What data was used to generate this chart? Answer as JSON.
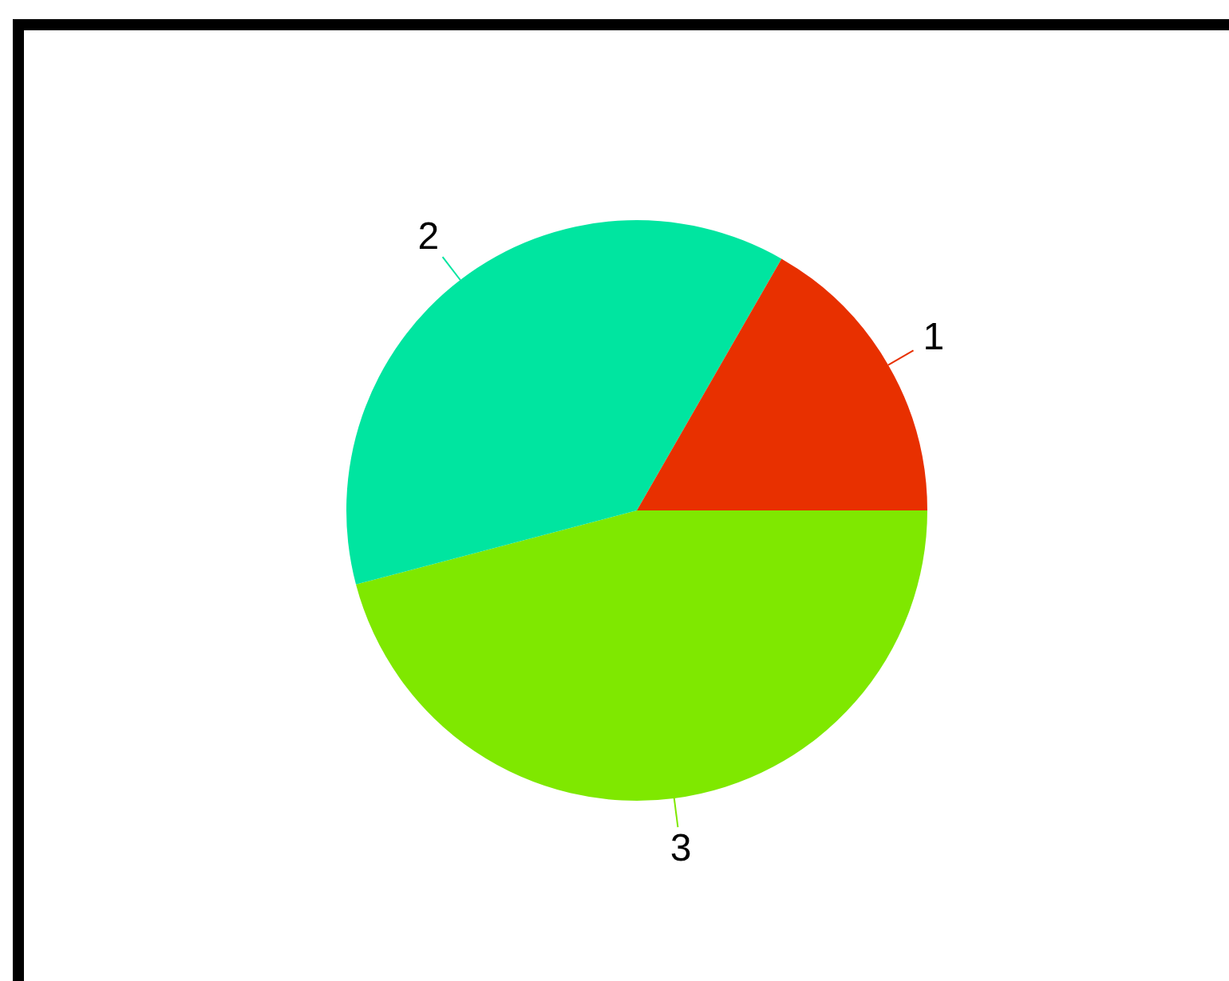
{
  "chart_data": {
    "type": "pie",
    "categories": [
      "1",
      "2",
      "3"
    ],
    "values": [
      16.7,
      37.4,
      45.9
    ],
    "colors": [
      "#e83000",
      "#00e5a0",
      "#7fe800"
    ],
    "legend": false
  }
}
